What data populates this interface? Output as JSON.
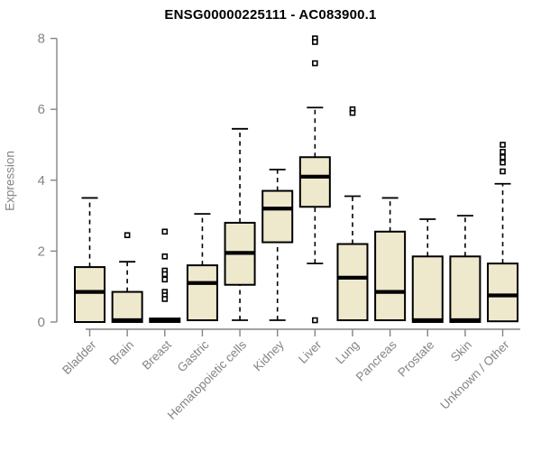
{
  "chart_data": {
    "type": "boxplot",
    "title": "ENSG00000225111 - AC083900.1",
    "ylabel": "Expression",
    "xlabel": "",
    "ylim": [
      0,
      8
    ],
    "yticks": [
      0,
      2,
      4,
      6,
      8
    ],
    "grid": false,
    "legend": "none",
    "box_fill": "#EEE8CD",
    "box_border": "#000000",
    "median_color": "#000000",
    "axis_color": "#848484",
    "title_color": "#000000",
    "categories": [
      "Bladder",
      "Brain",
      "Breast",
      "Gastric",
      "Hematopoietic cells",
      "Kidney",
      "Liver",
      "Lung",
      "Pancreas",
      "Prostate",
      "Skin",
      "Unknown / Other"
    ],
    "boxes": [
      {
        "category": "Bladder",
        "whisker_low": 0,
        "q1": 0,
        "median": 0.85,
        "q3": 1.55,
        "whisker_high": 3.5,
        "outliers": []
      },
      {
        "category": "Brain",
        "whisker_low": 0,
        "q1": 0,
        "median": 0.05,
        "q3": 0.85,
        "whisker_high": 1.7,
        "outliers": [
          2.45
        ]
      },
      {
        "category": "Breast",
        "whisker_low": 0,
        "q1": 0,
        "median": 0.05,
        "q3": 0.1,
        "whisker_high": 0.1,
        "outliers": [
          2.55,
          1.85,
          1.45,
          1.35,
          1.2,
          0.85,
          0.75,
          0.65
        ]
      },
      {
        "category": "Gastric",
        "whisker_low": 0.05,
        "q1": 0.05,
        "median": 1.1,
        "q3": 1.6,
        "whisker_high": 3.05,
        "outliers": []
      },
      {
        "category": "Hematopoietic cells",
        "whisker_low": 0.05,
        "q1": 1.05,
        "median": 1.95,
        "q3": 2.8,
        "whisker_high": 5.45,
        "outliers": []
      },
      {
        "category": "Kidney",
        "whisker_low": 0.05,
        "q1": 2.25,
        "median": 3.2,
        "q3": 3.7,
        "whisker_high": 4.3,
        "outliers": []
      },
      {
        "category": "Liver",
        "whisker_low": 1.65,
        "q1": 3.25,
        "median": 4.1,
        "q3": 4.65,
        "whisker_high": 6.05,
        "outliers": [
          8.0,
          7.9,
          7.3,
          0.05
        ]
      },
      {
        "category": "Lung",
        "whisker_low": 0.05,
        "q1": 0.05,
        "median": 1.25,
        "q3": 2.2,
        "whisker_high": 3.55,
        "outliers": [
          6.0,
          5.9
        ]
      },
      {
        "category": "Pancreas",
        "whisker_low": 0.05,
        "q1": 0.05,
        "median": 0.85,
        "q3": 2.55,
        "whisker_high": 3.5,
        "outliers": []
      },
      {
        "category": "Prostate",
        "whisker_low": 0,
        "q1": 0,
        "median": 0.05,
        "q3": 1.85,
        "whisker_high": 2.9,
        "outliers": []
      },
      {
        "category": "Skin",
        "whisker_low": 0,
        "q1": 0,
        "median": 0.05,
        "q3": 1.85,
        "whisker_high": 3.0,
        "outliers": []
      },
      {
        "category": "Unknown / Other",
        "whisker_low": 0,
        "q1": 0.02,
        "median": 0.75,
        "q3": 1.65,
        "whisker_high": 3.9,
        "outliers": [
          5.0,
          4.8,
          4.65,
          4.5,
          4.25
        ]
      }
    ]
  }
}
